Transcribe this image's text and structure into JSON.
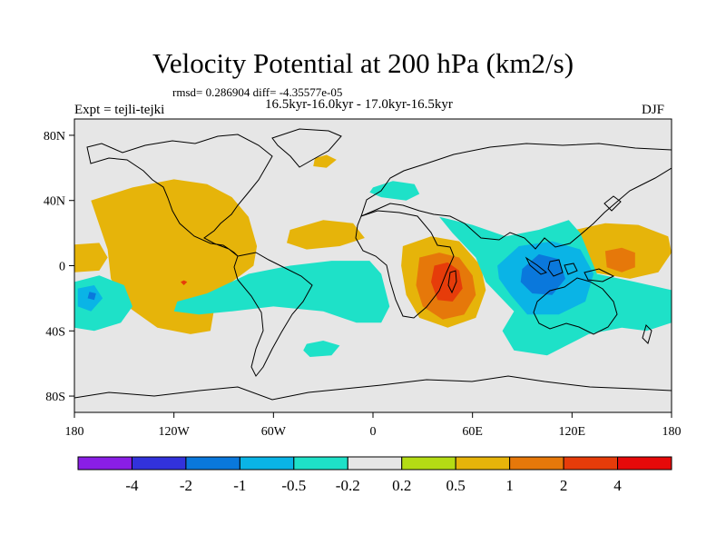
{
  "chart_data": {
    "type": "heatmap",
    "title": "Velocity Potential at 200 hPa (km2/s)",
    "stats_text": "rmsd= 0.286904 diff= -4.35577e-05",
    "subtitle": "16.5kyr-16.0kyr - 17.0kyr-16.5kyr",
    "left_label": "Expt = tejli-tejki",
    "right_label": "DJF",
    "x_ticks": [
      "180",
      "120W",
      "60W",
      "0",
      "60E",
      "120E",
      "180"
    ],
    "y_ticks": [
      "80N",
      "40N",
      "0",
      "40S",
      "80S"
    ],
    "xlim": [
      -180,
      180
    ],
    "ylim": [
      -90,
      90
    ],
    "colorbar": {
      "colors": [
        "#8a1ee6",
        "#3232dc",
        "#0a78dc",
        "#0ab4e6",
        "#1ee1c8",
        "#e6e6e6",
        "#b4dc14",
        "#e6b40a",
        "#e6780a",
        "#e63c0a",
        "#e60a0a"
      ],
      "labels": [
        "-4",
        "-2",
        "-1",
        "-0.5",
        "-0.2",
        "0.2",
        "0.5",
        "1",
        "2",
        "4"
      ]
    },
    "regions": [
      {
        "name": "region-pos-1",
        "level": 0.5,
        "points": [
          [
            -170,
            40
          ],
          [
            -145,
            48
          ],
          [
            -120,
            53
          ],
          [
            -100,
            50
          ],
          [
            -85,
            42
          ],
          [
            -75,
            30
          ],
          [
            -70,
            12
          ],
          [
            -72,
            0
          ],
          [
            -85,
            -10
          ],
          [
            -95,
            -22
          ],
          [
            -98,
            -40
          ],
          [
            -110,
            -42
          ],
          [
            -130,
            -38
          ],
          [
            -148,
            -25
          ],
          [
            -158,
            -8
          ],
          [
            -160,
            10
          ],
          [
            -165,
            25
          ]
        ]
      },
      {
        "name": "region-pos-2",
        "level": 0.5,
        "points": [
          [
            -180,
            13
          ],
          [
            -165,
            14
          ],
          [
            -160,
            5
          ],
          [
            -165,
            -3
          ],
          [
            -180,
            -4
          ]
        ]
      },
      {
        "name": "region-pos-3",
        "level": 0.5,
        "points": [
          [
            -50,
            22
          ],
          [
            -30,
            28
          ],
          [
            -12,
            26
          ],
          [
            -5,
            17
          ],
          [
            -20,
            12
          ],
          [
            -40,
            10
          ],
          [
            -52,
            14
          ]
        ]
      },
      {
        "name": "region-pos-4",
        "level": 0.5,
        "points": [
          [
            -35,
            66
          ],
          [
            -28,
            68
          ],
          [
            -22,
            65
          ],
          [
            -28,
            60
          ],
          [
            -36,
            61
          ]
        ]
      },
      {
        "name": "region-pos-5",
        "level": 0.5,
        "points": [
          [
            18,
            12
          ],
          [
            35,
            18
          ],
          [
            52,
            15
          ],
          [
            65,
            0
          ],
          [
            68,
            -15
          ],
          [
            62,
            -32
          ],
          [
            45,
            -38
          ],
          [
            28,
            -32
          ],
          [
            20,
            -18
          ],
          [
            17,
            0
          ]
        ]
      },
      {
        "name": "region-pos-6",
        "level": 0.5,
        "points": [
          [
            122,
            22
          ],
          [
            140,
            26
          ],
          [
            160,
            25
          ],
          [
            178,
            18
          ],
          [
            180,
            8
          ],
          [
            172,
            -4
          ],
          [
            155,
            -8
          ],
          [
            132,
            -4
          ],
          [
            123,
            6
          ]
        ]
      },
      {
        "name": "region-pos-7",
        "level": 1,
        "points": [
          [
            28,
            5
          ],
          [
            40,
            8
          ],
          [
            52,
            5
          ],
          [
            60,
            -6
          ],
          [
            62,
            -18
          ],
          [
            55,
            -30
          ],
          [
            42,
            -33
          ],
          [
            30,
            -25
          ],
          [
            26,
            -12
          ]
        ]
      },
      {
        "name": "region-pos-8",
        "level": 1,
        "points": [
          [
            140,
            9
          ],
          [
            150,
            11
          ],
          [
            158,
            8
          ],
          [
            158,
            -1
          ],
          [
            150,
            -4
          ],
          [
            141,
            -1
          ]
        ]
      },
      {
        "name": "region-pos-9",
        "level": 2,
        "points": [
          [
            37,
            0
          ],
          [
            45,
            2
          ],
          [
            52,
            -3
          ],
          [
            54,
            -14
          ],
          [
            48,
            -22
          ],
          [
            39,
            -21
          ],
          [
            35,
            -10
          ]
        ]
      },
      {
        "name": "region-pos-10",
        "level": 2,
        "points": [
          [
            -114,
            -9
          ],
          [
            -112,
            -10
          ],
          [
            -114,
            -12
          ],
          [
            -116,
            -10
          ]
        ]
      },
      {
        "name": "region-neg-1",
        "level": -0.2,
        "points": [
          [
            -180,
            -10
          ],
          [
            -165,
            -6
          ],
          [
            -150,
            -12
          ],
          [
            -145,
            -25
          ],
          [
            -152,
            -35
          ],
          [
            -168,
            -40
          ],
          [
            -180,
            -38
          ]
        ]
      },
      {
        "name": "region-neg-2",
        "level": -0.2,
        "points": [
          [
            -118,
            -22
          ],
          [
            -100,
            -17
          ],
          [
            -75,
            -5
          ],
          [
            -50,
            0
          ],
          [
            -25,
            3
          ],
          [
            -2,
            3
          ],
          [
            5,
            -5
          ],
          [
            10,
            -25
          ],
          [
            5,
            -35
          ],
          [
            -10,
            -35
          ],
          [
            -30,
            -28
          ],
          [
            -60,
            -25
          ],
          [
            -85,
            -28
          ],
          [
            -105,
            -30
          ],
          [
            -120,
            -28
          ]
        ]
      },
      {
        "name": "region-neg-3",
        "level": -0.2,
        "points": [
          [
            0,
            48
          ],
          [
            12,
            52
          ],
          [
            25,
            50
          ],
          [
            28,
            44
          ],
          [
            20,
            40
          ],
          [
            5,
            42
          ],
          [
            -2,
            45
          ]
        ]
      },
      {
        "name": "region-neg-4",
        "level": -0.2,
        "points": [
          [
            -40,
            -48
          ],
          [
            -30,
            -46
          ],
          [
            -20,
            -49
          ],
          [
            -25,
            -55
          ],
          [
            -38,
            -56
          ],
          [
            -42,
            -52
          ]
        ]
      },
      {
        "name": "region-neg-5",
        "level": -0.2,
        "points": [
          [
            40,
            30
          ],
          [
            60,
            25
          ],
          [
            80,
            18
          ],
          [
            100,
            22
          ],
          [
            118,
            28
          ],
          [
            125,
            20
          ],
          [
            135,
            -5
          ],
          [
            158,
            -10
          ],
          [
            180,
            -15
          ],
          [
            180,
            -35
          ],
          [
            165,
            -40
          ],
          [
            150,
            -38
          ],
          [
            130,
            -42
          ],
          [
            105,
            -55
          ],
          [
            85,
            -52
          ],
          [
            78,
            -40
          ],
          [
            85,
            -28
          ],
          [
            68,
            -10
          ],
          [
            62,
            5
          ],
          [
            48,
            20
          ]
        ]
      },
      {
        "name": "region-neg-6",
        "level": -0.5,
        "points": [
          [
            75,
            0
          ],
          [
            88,
            12
          ],
          [
            108,
            15
          ],
          [
            125,
            10
          ],
          [
            133,
            -5
          ],
          [
            128,
            -22
          ],
          [
            112,
            -30
          ],
          [
            93,
            -30
          ],
          [
            83,
            -18
          ],
          [
            76,
            -8
          ]
        ]
      },
      {
        "name": "region-neg-7",
        "level": -0.5,
        "points": [
          [
            -178,
            -14
          ],
          [
            -168,
            -12
          ],
          [
            -163,
            -20
          ],
          [
            -170,
            -28
          ],
          [
            -178,
            -25
          ]
        ]
      },
      {
        "name": "region-neg-8",
        "level": -1,
        "points": [
          [
            90,
            -2
          ],
          [
            100,
            7
          ],
          [
            112,
            4
          ],
          [
            116,
            -8
          ],
          [
            108,
            -18
          ],
          [
            96,
            -17
          ],
          [
            89,
            -10
          ]
        ]
      },
      {
        "name": "region-neg-9",
        "level": -1,
        "points": [
          [
            -171,
            -16
          ],
          [
            -167,
            -17
          ],
          [
            -168,
            -21
          ],
          [
            -172,
            -20
          ]
        ]
      }
    ]
  }
}
